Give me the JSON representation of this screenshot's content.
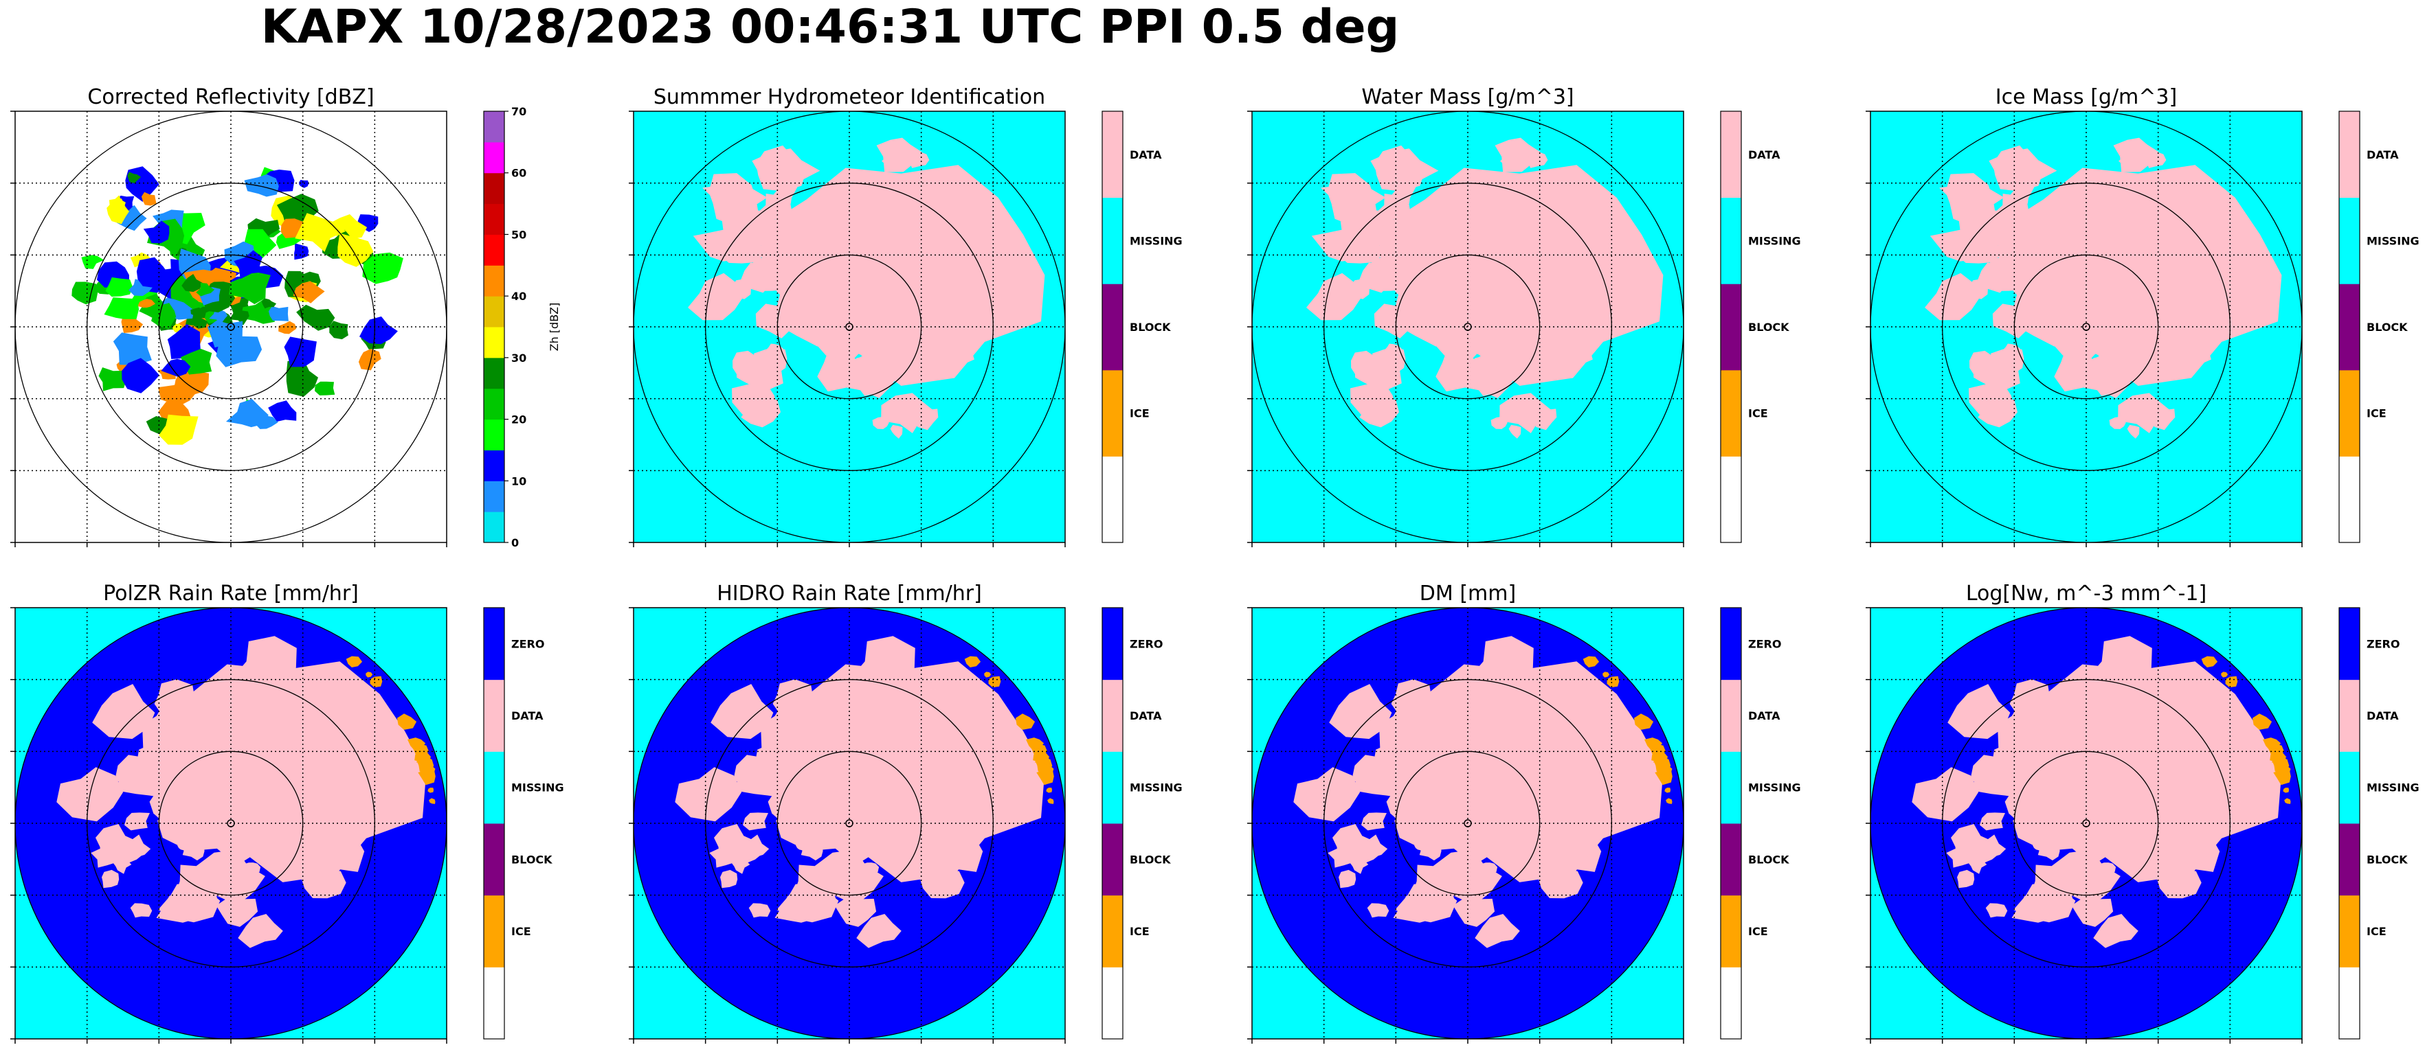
{
  "figure": {
    "title": "KAPX 10/28/2023 00:46:31 UTC PPI 0.5 deg"
  },
  "colors": {
    "cyan": "#00ffff",
    "pink": "#ffc0cb",
    "blue": "#0000ff",
    "purple": "#800080",
    "orange": "#ffa500",
    "white": "#ffffff",
    "grid": "#000000"
  },
  "chart_data": [
    {
      "type": "heatmap",
      "title": "Corrected Reflectivity [dBZ]",
      "background": "#ffffff",
      "colorbar": {
        "kind": "continuous",
        "label": "Zh [dBZ]",
        "ticks": [
          "0",
          "10",
          "20",
          "30",
          "40",
          "50",
          "60",
          "70"
        ],
        "colors": [
          "#00e5ee",
          "#1e90ff",
          "#0000ff",
          "#00ff00",
          "#00c800",
          "#008c00",
          "#ffff00",
          "#e5c100",
          "#ff8c00",
          "#ff0000",
          "#d40000",
          "#bc0000",
          "#ff00ff",
          "#9955c9"
        ]
      },
      "echo_palette": [
        "#1e90ff",
        "#0000ff",
        "#00c800",
        "#00ff00",
        "#008c00",
        "#ffff00",
        "#ff8c00"
      ],
      "grid": true
    },
    {
      "type": "heatmap",
      "title": "Summmer Hydrometeor Identification",
      "background": "#00ffff",
      "fill": "#ffc0cb",
      "colorbar": {
        "kind": "categorical",
        "labels": [
          "ICE",
          "BLOCK",
          "MISSING",
          "DATA"
        ],
        "colors": [
          "#ffffff",
          "#ffa500",
          "#800080",
          "#00ffff",
          "#ffc0cb"
        ]
      },
      "grid": true
    },
    {
      "type": "heatmap",
      "title": "Water Mass [g/m^3]",
      "background": "#00ffff",
      "fill": "#ffc0cb",
      "colorbar": {
        "kind": "categorical",
        "labels": [
          "ICE",
          "BLOCK",
          "MISSING",
          "DATA"
        ],
        "colors": [
          "#ffffff",
          "#ffa500",
          "#800080",
          "#00ffff",
          "#ffc0cb"
        ]
      },
      "grid": true
    },
    {
      "type": "heatmap",
      "title": "Ice Mass [g/m^3]",
      "background": "#00ffff",
      "fill": "#ffc0cb",
      "colorbar": {
        "kind": "categorical",
        "labels": [
          "ICE",
          "BLOCK",
          "MISSING",
          "DATA"
        ],
        "colors": [
          "#ffffff",
          "#ffa500",
          "#800080",
          "#00ffff",
          "#ffc0cb"
        ]
      },
      "grid": true
    },
    {
      "type": "heatmap",
      "title": "PolZR Rain Rate [mm/hr]",
      "background": "#00ffff",
      "disk": "#0000ff",
      "fill": "#ffc0cb",
      "edge": "#ffa500",
      "colorbar": {
        "kind": "categorical",
        "labels": [
          "ICE",
          "BLOCK",
          "MISSING",
          "DATA",
          "ZERO"
        ],
        "colors": [
          "#ffffff",
          "#ffa500",
          "#800080",
          "#00ffff",
          "#ffc0cb",
          "#0000ff"
        ]
      },
      "grid": true
    },
    {
      "type": "heatmap",
      "title": "HIDRO Rain Rate [mm/hr]",
      "background": "#00ffff",
      "disk": "#0000ff",
      "fill": "#ffc0cb",
      "edge": "#ffa500",
      "colorbar": {
        "kind": "categorical",
        "labels": [
          "ICE",
          "BLOCK",
          "MISSING",
          "DATA",
          "ZERO"
        ],
        "colors": [
          "#ffffff",
          "#ffa500",
          "#800080",
          "#00ffff",
          "#ffc0cb",
          "#0000ff"
        ]
      },
      "grid": true
    },
    {
      "type": "heatmap",
      "title": "DM [mm]",
      "background": "#00ffff",
      "disk": "#0000ff",
      "fill": "#ffc0cb",
      "edge": "#ffa500",
      "colorbar": {
        "kind": "categorical",
        "labels": [
          "ICE",
          "BLOCK",
          "MISSING",
          "DATA",
          "ZERO"
        ],
        "colors": [
          "#ffffff",
          "#ffa500",
          "#800080",
          "#00ffff",
          "#ffc0cb",
          "#0000ff"
        ]
      },
      "grid": true
    },
    {
      "type": "heatmap",
      "title": "Log[Nw, m^-3 mm^-1]",
      "background": "#00ffff",
      "disk": "#0000ff",
      "fill": "#ffc0cb",
      "edge": "#ffa500",
      "colorbar": {
        "kind": "categorical",
        "labels": [
          "ICE",
          "BLOCK",
          "MISSING",
          "DATA",
          "ZERO"
        ],
        "colors": [
          "#ffffff",
          "#ffa500",
          "#800080",
          "#00ffff",
          "#ffc0cb",
          "#0000ff"
        ]
      },
      "grid": true
    }
  ]
}
